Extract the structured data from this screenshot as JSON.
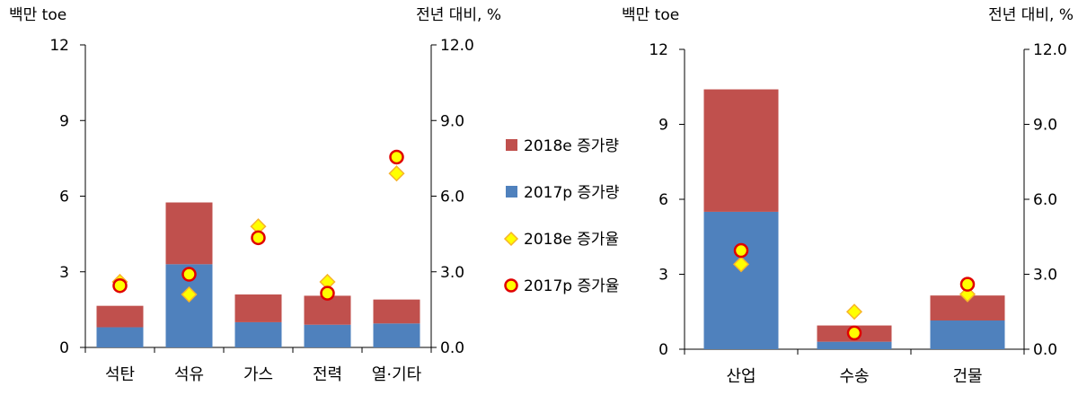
{
  "colors": {
    "increase_2018e": "#C0504D",
    "increase_2017p": "#4F81BD",
    "rate_2018e_fill": "#FFFF00",
    "rate_2018e_stroke": "#F7B32B",
    "rate_2017p_fill": "#FFFF00",
    "rate_2017p_stroke": "#E00000",
    "axis": "#000000"
  },
  "legend": {
    "items": [
      {
        "label": "2018e 증가량",
        "marker": "square",
        "color": "#C0504D"
      },
      {
        "label": "2017p 증가량",
        "marker": "square",
        "color": "#4F81BD"
      },
      {
        "label": "2018e 증가율",
        "marker": "diamond",
        "color": "#FFFF00"
      },
      {
        "label": "2017p 증가율",
        "marker": "circle",
        "color": "#FFFF00"
      }
    ]
  },
  "chart_data": [
    {
      "type": "bar",
      "stacked": true,
      "categories": [
        "석탄",
        "석유",
        "가스",
        "전력",
        "열·기타"
      ],
      "ylabel_left": "백만 toe",
      "ylabel_right": "전년 대비, %",
      "ylim_left": [
        0,
        12
      ],
      "yticks_left": [
        "0",
        "3",
        "6",
        "9",
        "12"
      ],
      "ylim_right": [
        0,
        12
      ],
      "yticks_right": [
        "0.0",
        "3.0",
        "6.0",
        "9.0",
        "12.0"
      ],
      "grid": false,
      "series": [
        {
          "name": "2017p 증가량",
          "kind": "bar",
          "axis": "left",
          "values": [
            0.8,
            3.3,
            1.0,
            0.9,
            0.95
          ]
        },
        {
          "name": "2018e 증가량",
          "kind": "bar",
          "axis": "left",
          "values": [
            0.85,
            2.45,
            1.1,
            1.15,
            0.95
          ]
        },
        {
          "name": "2018e 증가율",
          "kind": "marker",
          "marker": "diamond",
          "axis": "right",
          "values": [
            2.6,
            2.1,
            4.8,
            2.6,
            6.9
          ]
        },
        {
          "name": "2017p 증가율",
          "kind": "marker",
          "marker": "circle",
          "axis": "right",
          "values": [
            2.45,
            2.9,
            4.35,
            2.15,
            7.55
          ]
        }
      ]
    },
    {
      "type": "bar",
      "stacked": true,
      "categories": [
        "산업",
        "수송",
        "건물"
      ],
      "ylabel_left": "백만 toe",
      "ylabel_right": "전년 대비, %",
      "ylim_left": [
        0,
        12
      ],
      "yticks_left": [
        "0",
        "3",
        "6",
        "9",
        "12"
      ],
      "ylim_right": [
        0,
        12
      ],
      "yticks_right": [
        "0.0",
        "3.0",
        "6.0",
        "9.0",
        "12.0"
      ],
      "grid": false,
      "series": [
        {
          "name": "2017p 증가량",
          "kind": "bar",
          "axis": "left",
          "values": [
            5.5,
            0.3,
            1.15
          ]
        },
        {
          "name": "2018e 증가량",
          "kind": "bar",
          "axis": "left",
          "values": [
            4.9,
            0.65,
            1.0
          ]
        },
        {
          "name": "2018e 증가율",
          "kind": "marker",
          "marker": "diamond",
          "axis": "right",
          "values": [
            3.4,
            1.5,
            2.2
          ]
        },
        {
          "name": "2017p 증가율",
          "kind": "marker",
          "marker": "circle",
          "axis": "right",
          "values": [
            3.95,
            0.65,
            2.6
          ]
        }
      ]
    }
  ]
}
